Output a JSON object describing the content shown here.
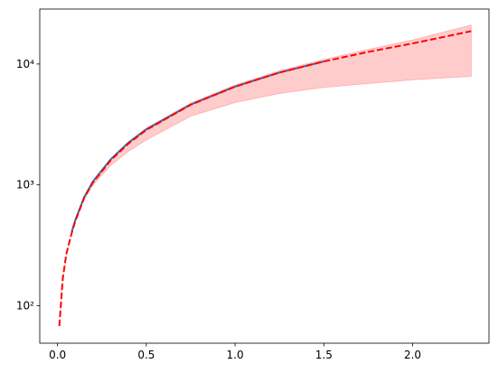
{
  "chart_data": {
    "type": "line",
    "log_y": true,
    "xlim": [
      -0.1,
      2.43
    ],
    "ylim": [
      49,
      28500
    ],
    "xticks": [
      {
        "value": 0,
        "label": "0.0"
      },
      0.5,
      {
        "value": 1,
        "label": "1.0"
      },
      1.5,
      {
        "value": 2,
        "label": "2.0"
      }
    ],
    "yticks": [
      {
        "value": 100,
        "label": "10²"
      },
      {
        "value": 1000,
        "label": "10³"
      },
      {
        "value": 10000,
        "label": "10⁴"
      }
    ],
    "x": [
      0.01,
      0.03,
      0.05,
      0.08,
      0.1,
      0.15,
      0.2,
      0.3,
      0.4,
      0.5,
      0.75,
      1.0,
      1.25,
      1.5,
      1.75,
      2.0,
      2.33
    ],
    "band": {
      "color": "#ff0000",
      "lower": [
        68,
        170,
        270,
        400,
        495,
        760,
        1000,
        1450,
        1900,
        2350,
        3700,
        4800,
        5700,
        6400,
        6900,
        7400,
        7900
      ],
      "upper": [
        68,
        170,
        270,
        400,
        505,
        800,
        1080,
        1650,
        2280,
        2950,
        4750,
        6700,
        8800,
        10900,
        13200,
        15800,
        21000
      ]
    },
    "series": [
      {
        "color": "#1f77b4",
        "style": "solid",
        "x": [
          0.08,
          0.1,
          0.15,
          0.2,
          0.3,
          0.4,
          0.5,
          0.75,
          1.0,
          1.25,
          1.5
        ],
        "values": [
          410,
          510,
          790,
          1070,
          1630,
          2240,
          2880,
          4620,
          6500,
          8500,
          10500
        ]
      },
      {
        "color": "#ff0000",
        "style": "dashed",
        "values": [
          68,
          170,
          270,
          400,
          500,
          780,
          1050,
          1600,
          2200,
          2850,
          4600,
          6500,
          8500,
          10500,
          12600,
          14800,
          18700
        ]
      }
    ]
  }
}
